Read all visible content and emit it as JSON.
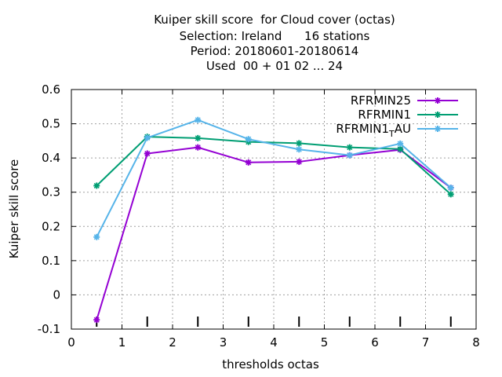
{
  "chart_data": {
    "type": "line",
    "title_lines": [
      "Kuiper skill score  for Cloud cover (octas)",
      "Selection: Ireland      16 stations",
      "Period: 20180601-20180614",
      "Used  00 + 01 02 ... 24"
    ],
    "xlabel": "thresholds octas",
    "ylabel": "Kuiper skill score",
    "xlim": [
      0,
      8
    ],
    "ylim": [
      -0.1,
      0.6
    ],
    "xticks": [
      0,
      1,
      2,
      3,
      4,
      5,
      6,
      7,
      8
    ],
    "yticks": [
      -0.1,
      0,
      0.1,
      0.2,
      0.3,
      0.4,
      0.5,
      0.6
    ],
    "ytick_labels": [
      "-0.1",
      "0",
      "0.1",
      "0.2",
      "0.3",
      "0.4",
      "0.5",
      "0.6"
    ],
    "grid": true,
    "legend_position": "top-right",
    "x": [
      0.5,
      1.5,
      2.5,
      3.5,
      4.5,
      5.5,
      6.5,
      7.5
    ],
    "series": [
      {
        "name": "RFRMIN25",
        "color": "#9400d3",
        "values": [
          -0.073,
          0.413,
          0.431,
          0.387,
          0.389,
          0.408,
          0.424,
          0.313
        ]
      },
      {
        "name": "RFRMIN1",
        "color": "#009e73",
        "values": [
          0.319,
          0.462,
          0.458,
          0.447,
          0.443,
          0.431,
          0.426,
          0.294
        ]
      },
      {
        "name": "RFRMIN1",
        "name_sub": "T",
        "name_suffix": "AU",
        "color": "#56b4e9",
        "values": [
          0.169,
          0.459,
          0.511,
          0.455,
          0.425,
          0.408,
          0.442,
          0.313
        ]
      }
    ]
  }
}
